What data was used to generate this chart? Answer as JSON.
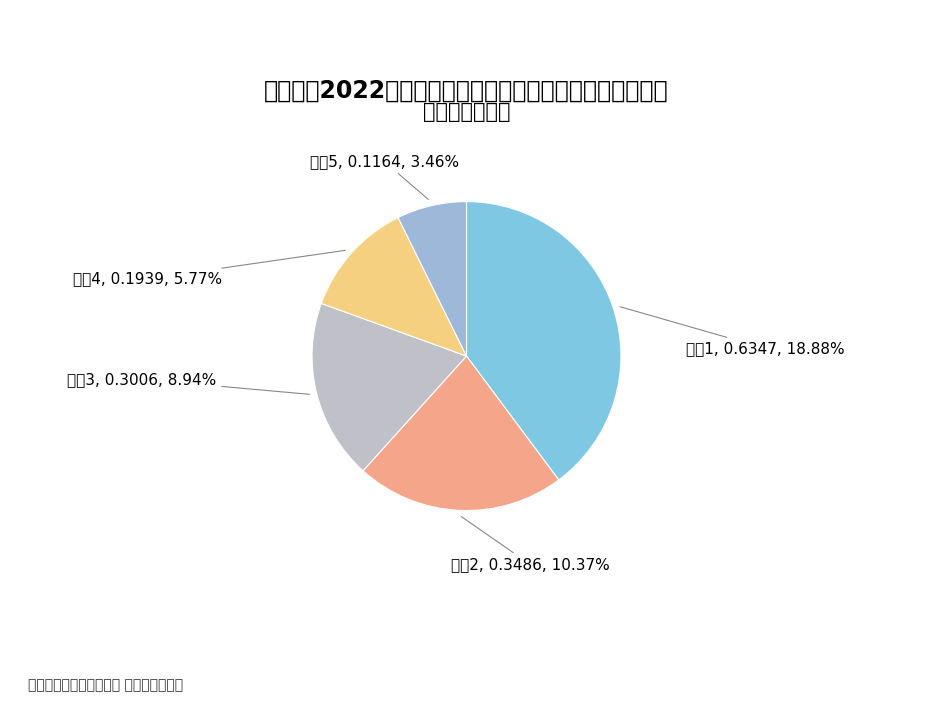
{
  "title_line1": "芯导科技2022年前五大客户销售额占年度销售总额比例情况",
  "title_line2": "（单位：亿元）",
  "labels": [
    "客户1",
    "客户2",
    "客户3",
    "客户4",
    "客户5"
  ],
  "values": [
    0.6347,
    0.3486,
    0.3006,
    0.1939,
    0.1164
  ],
  "percentages": [
    "18.88%",
    "10.37%",
    "8.94%",
    "5.77%",
    "3.46%"
  ],
  "colors": [
    "#7EC8E3",
    "#F4A58A",
    "#C0C0C8",
    "#F5D080",
    "#9DB8D8"
  ],
  "source_text": "数据来源：芯导科技财报 制图：充电头网",
  "background_color": "#FFFFFF",
  "title_fontsize": 17,
  "label_fontsize": 11,
  "legend_fontsize": 11,
  "source_fontsize": 10
}
